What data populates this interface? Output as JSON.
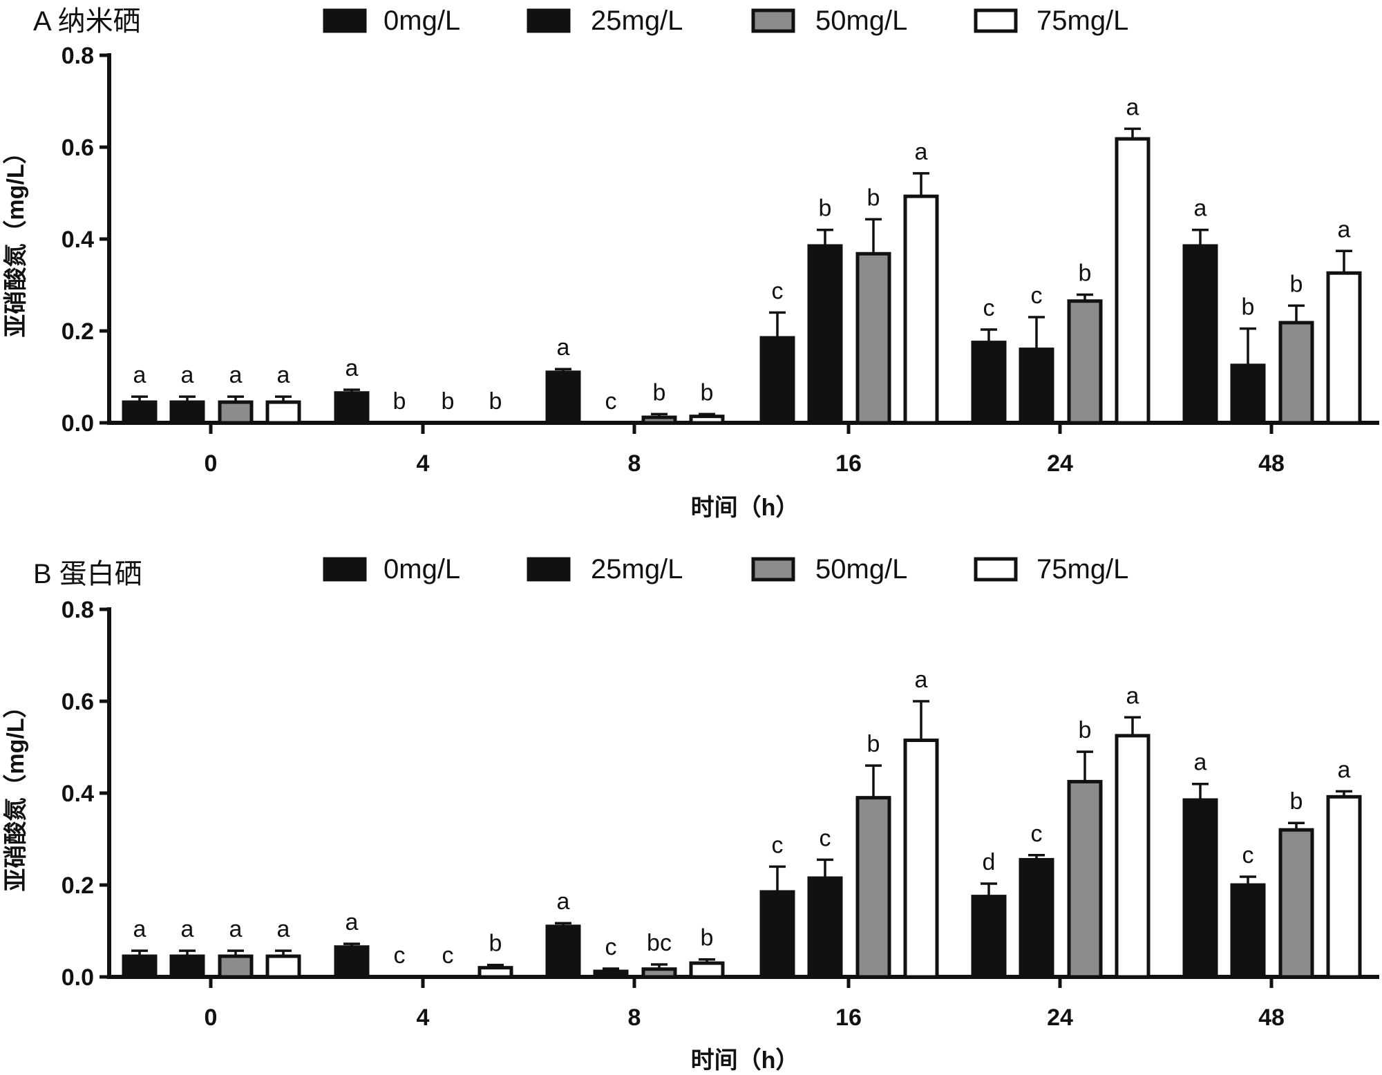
{
  "chart_data": [
    {
      "type": "bar",
      "title": "A 纳米硒",
      "xlabel": "时间（h）",
      "ylabel": "亚硝酸氮（mg/L）",
      "ylim": [
        0,
        0.8
      ],
      "yticks": [
        "0.0",
        "0.2",
        "0.4",
        "0.6",
        "0.8"
      ],
      "categories": [
        "0",
        "4",
        "8",
        "16",
        "24",
        "48"
      ],
      "legend_position": "top",
      "series": [
        {
          "name": "0mg/L",
          "color": "#111111",
          "values": [
            0.045,
            0.065,
            0.11,
            0.185,
            0.175,
            0.385
          ],
          "errors": [
            0.012,
            0.007,
            0.007,
            0.055,
            0.028,
            0.035
          ],
          "labels": [
            "a",
            "a",
            "a",
            "c",
            "c",
            "a"
          ]
        },
        {
          "name": "25mg/L",
          "color": "#111111",
          "values": [
            0.045,
            0.0,
            0.0,
            0.385,
            0.16,
            0.125
          ],
          "errors": [
            0.012,
            0,
            0,
            0.035,
            0.07,
            0.08
          ],
          "labels": [
            "a",
            "b",
            "c",
            "b",
            "c",
            "b"
          ]
        },
        {
          "name": "50mg/L",
          "color": "#8c8c8c",
          "values": [
            0.045,
            0.0,
            0.012,
            0.368,
            0.265,
            0.218
          ],
          "errors": [
            0.012,
            0,
            0.007,
            0.075,
            0.014,
            0.037
          ],
          "labels": [
            "a",
            "b",
            "b",
            "b",
            "b",
            "b"
          ]
        },
        {
          "name": "75mg/L",
          "color": "#ffffff",
          "values": [
            0.045,
            0.0,
            0.014,
            0.493,
            0.618,
            0.326
          ],
          "errors": [
            0.012,
            0,
            0.005,
            0.05,
            0.022,
            0.048
          ],
          "labels": [
            "a",
            "b",
            "b",
            "a",
            "a",
            "a"
          ]
        }
      ]
    },
    {
      "type": "bar",
      "title": "B 蛋白硒",
      "xlabel": "时间（h）",
      "ylabel": "亚硝酸氮（mg/L）",
      "ylim": [
        0,
        0.8
      ],
      "yticks": [
        "0.0",
        "0.2",
        "0.4",
        "0.6",
        "0.8"
      ],
      "categories": [
        "0",
        "4",
        "8",
        "16",
        "24",
        "48"
      ],
      "legend_position": "top",
      "series": [
        {
          "name": "0mg/L",
          "color": "#111111",
          "values": [
            0.045,
            0.065,
            0.11,
            0.185,
            0.175,
            0.385
          ],
          "errors": [
            0.012,
            0.007,
            0.007,
            0.055,
            0.028,
            0.035
          ],
          "labels": [
            "a",
            "a",
            "a",
            "c",
            "d",
            "a"
          ]
        },
        {
          "name": "25mg/L",
          "color": "#111111",
          "values": [
            0.045,
            0.0,
            0.012,
            0.215,
            0.255,
            0.2
          ],
          "errors": [
            0.012,
            0,
            0.006,
            0.04,
            0.01,
            0.018
          ],
          "labels": [
            "a",
            "c",
            "c",
            "c",
            "c",
            "c"
          ]
        },
        {
          "name": "50mg/L",
          "color": "#8c8c8c",
          "values": [
            0.045,
            0.0,
            0.017,
            0.39,
            0.425,
            0.32
          ],
          "errors": [
            0.012,
            0,
            0.01,
            0.07,
            0.065,
            0.015
          ],
          "labels": [
            "a",
            "c",
            "bc",
            "b",
            "b",
            "b"
          ]
        },
        {
          "name": "75mg/L",
          "color": "#ffffff",
          "values": [
            0.045,
            0.02,
            0.03,
            0.515,
            0.525,
            0.392
          ],
          "errors": [
            0.012,
            0.006,
            0.008,
            0.085,
            0.04,
            0.012
          ],
          "labels": [
            "a",
            "b",
            "b",
            "a",
            "a",
            "a"
          ]
        }
      ]
    }
  ]
}
